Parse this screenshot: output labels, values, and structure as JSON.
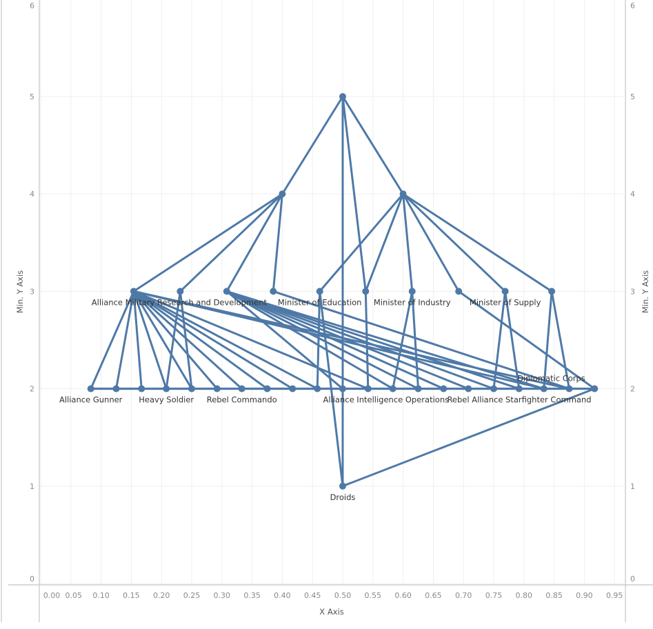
{
  "chart_data": {
    "type": "scatter",
    "subtype": "network-tree",
    "title": "",
    "xlabel": "X Axis",
    "ylabel": "Min. Y Axis",
    "ylabel_right": "Min. Y Axis",
    "xlim": [
      -0.005,
      0.985
    ],
    "ylim": [
      -0.1,
      6
    ],
    "grid": true,
    "legend": null,
    "x_ticks": [
      "0.00",
      "0.05",
      "0.10",
      "0.15",
      "0.20",
      "0.25",
      "0.30",
      "0.35",
      "0.40",
      "0.45",
      "0.50",
      "0.55",
      "0.60",
      "0.65",
      "0.70",
      "0.75",
      "0.80",
      "0.85",
      "0.90",
      "0.95"
    ],
    "y_ticks": [
      "0",
      "1",
      "2",
      "3",
      "4",
      "5",
      "6"
    ],
    "mark_color": "#4e79a7",
    "nodes": [
      {
        "id": "root",
        "x": 0.5,
        "y": 5,
        "label": ""
      },
      {
        "id": "L4a",
        "x": 0.4,
        "y": 4,
        "label": ""
      },
      {
        "id": "L4b",
        "x": 0.6,
        "y": 4,
        "label": ""
      },
      {
        "id": "L3a",
        "x": 0.154,
        "y": 3,
        "label": "Alliance Military Research and Development"
      },
      {
        "id": "L3b",
        "x": 0.231,
        "y": 3,
        "label": ""
      },
      {
        "id": "L3c",
        "x": 0.308,
        "y": 3,
        "label": ""
      },
      {
        "id": "L3d",
        "x": 0.385,
        "y": 3,
        "label": ""
      },
      {
        "id": "L3e",
        "x": 0.462,
        "y": 3,
        "label": "Minister of Education"
      },
      {
        "id": "L3f",
        "x": 0.538,
        "y": 3,
        "label": ""
      },
      {
        "id": "L3g",
        "x": 0.615,
        "y": 3,
        "label": "Minister of Industry"
      },
      {
        "id": "L3h",
        "x": 0.692,
        "y": 3,
        "label": ""
      },
      {
        "id": "L3i",
        "x": 0.769,
        "y": 3,
        "label": "Minister of Supply"
      },
      {
        "id": "L3j",
        "x": 0.846,
        "y": 3,
        "label": ""
      },
      {
        "id": "L2a",
        "x": 0.083,
        "y": 2,
        "label": "Alliance Gunner"
      },
      {
        "id": "L2b",
        "x": 0.125,
        "y": 2,
        "label": ""
      },
      {
        "id": "L2c",
        "x": 0.167,
        "y": 2,
        "label": ""
      },
      {
        "id": "L2d",
        "x": 0.208,
        "y": 2,
        "label": "Heavy Soldier"
      },
      {
        "id": "L2e",
        "x": 0.25,
        "y": 2,
        "label": ""
      },
      {
        "id": "L2f",
        "x": 0.292,
        "y": 2,
        "label": ""
      },
      {
        "id": "L2g",
        "x": 0.333,
        "y": 2,
        "label": "Rebel Commando"
      },
      {
        "id": "L2h",
        "x": 0.375,
        "y": 2,
        "label": ""
      },
      {
        "id": "L2i",
        "x": 0.417,
        "y": 2,
        "label": ""
      },
      {
        "id": "L2j",
        "x": 0.458,
        "y": 2,
        "label": ""
      },
      {
        "id": "L2k",
        "x": 0.5,
        "y": 2,
        "label": ""
      },
      {
        "id": "L2l",
        "x": 0.542,
        "y": 2,
        "label": "Alliance Intelligence Operations"
      },
      {
        "id": "L2m",
        "x": 0.583,
        "y": 2,
        "label": ""
      },
      {
        "id": "L2n",
        "x": 0.625,
        "y": 2,
        "label": ""
      },
      {
        "id": "L2o",
        "x": 0.667,
        "y": 2,
        "label": ""
      },
      {
        "id": "L2p",
        "x": 0.708,
        "y": 2,
        "label": ""
      },
      {
        "id": "L2q",
        "x": 0.75,
        "y": 2,
        "label": "Rebel Alliance Starfighter Command"
      },
      {
        "id": "L2r",
        "x": 0.792,
        "y": 2,
        "label": ""
      },
      {
        "id": "L2s",
        "x": 0.833,
        "y": 2,
        "label": ""
      },
      {
        "id": "L2t",
        "x": 0.875,
        "y": 2,
        "label": "Diplomatic Corps"
      },
      {
        "id": "L2u",
        "x": 0.917,
        "y": 2,
        "label": ""
      },
      {
        "id": "L1a",
        "x": 0.5,
        "y": 1,
        "label": "Droids"
      }
    ],
    "edges": [
      [
        "root",
        "L4a"
      ],
      [
        "root",
        "L4b"
      ],
      [
        "root",
        "L1a"
      ],
      [
        "root",
        "L3f"
      ],
      [
        "L4a",
        "L3a"
      ],
      [
        "L4a",
        "L3b"
      ],
      [
        "L4a",
        "L3c"
      ],
      [
        "L4a",
        "L3d"
      ],
      [
        "L4b",
        "L3e"
      ],
      [
        "L4b",
        "L3f"
      ],
      [
        "L4b",
        "L3g"
      ],
      [
        "L4b",
        "L3h"
      ],
      [
        "L4b",
        "L3i"
      ],
      [
        "L4b",
        "L3j"
      ],
      [
        "L3a",
        "L2a"
      ],
      [
        "L3a",
        "L2b"
      ],
      [
        "L3a",
        "L2c"
      ],
      [
        "L3a",
        "L2d"
      ],
      [
        "L3a",
        "L2e"
      ],
      [
        "L3a",
        "L2f"
      ],
      [
        "L3a",
        "L2g"
      ],
      [
        "L3a",
        "L2h"
      ],
      [
        "L3a",
        "L2i"
      ],
      [
        "L3a",
        "L2j"
      ],
      [
        "L3a",
        "L2l"
      ],
      [
        "L3a",
        "L2s"
      ],
      [
        "L3a",
        "L2t"
      ],
      [
        "L3b",
        "L2d"
      ],
      [
        "L3b",
        "L2e"
      ],
      [
        "L3c",
        "L2k"
      ],
      [
        "L3c",
        "L2m"
      ],
      [
        "L3c",
        "L2n"
      ],
      [
        "L3c",
        "L2o"
      ],
      [
        "L3c",
        "L2p"
      ],
      [
        "L3c",
        "L2q"
      ],
      [
        "L3c",
        "L2r"
      ],
      [
        "L3c",
        "L2s"
      ],
      [
        "L3d",
        "L2t"
      ],
      [
        "L3e",
        "L2j"
      ],
      [
        "L3e",
        "L1a"
      ],
      [
        "L3f",
        "L2l"
      ],
      [
        "L3g",
        "L2m"
      ],
      [
        "L3g",
        "L2n"
      ],
      [
        "L3h",
        "L2u"
      ],
      [
        "L3i",
        "L2q"
      ],
      [
        "L3i",
        "L2r"
      ],
      [
        "L3j",
        "L2s"
      ],
      [
        "L3j",
        "L2t"
      ],
      [
        "L2a",
        "L2u"
      ],
      [
        "L2u",
        "L1a"
      ]
    ]
  }
}
